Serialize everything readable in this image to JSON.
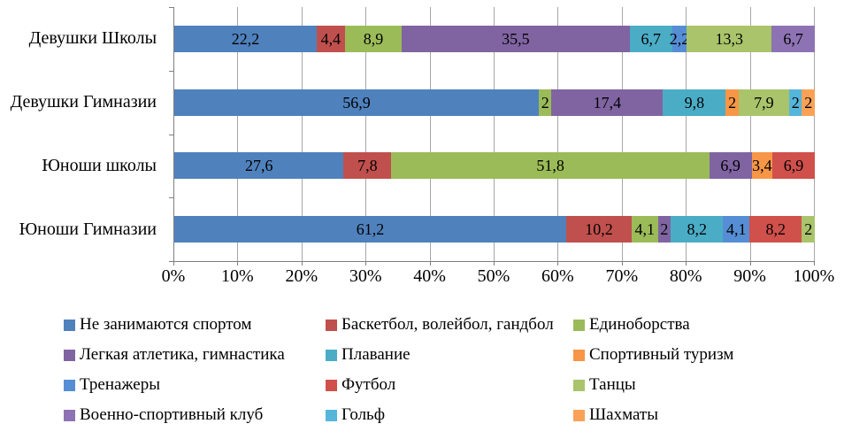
{
  "chart_data": {
    "type": "bar",
    "subtype": "horizontal-100-stacked",
    "title": "",
    "xlabel": "",
    "ylabel": "",
    "unit": "%",
    "decimal_separator": ",",
    "xlim": [
      0,
      100
    ],
    "grid": "vertical",
    "grid_color": "#a6a6a6",
    "axis_color": "#7f7f7f",
    "x_ticks": [
      "0%",
      "10%",
      "20%",
      "30%",
      "40%",
      "50%",
      "60%",
      "70%",
      "80%",
      "90%",
      "100%"
    ],
    "legend_position": "bottom",
    "series": [
      {
        "name": "Не занимаются спортом",
        "color": "#4F81BD"
      },
      {
        "name": "Баскетбол, волейбол, гандбол",
        "color": "#C0504D"
      },
      {
        "name": "Единоборства",
        "color": "#9BBB59"
      },
      {
        "name": "Легкая атлетика, гимнастика",
        "color": "#8064A2"
      },
      {
        "name": "Плавание",
        "color": "#4BACC6"
      },
      {
        "name": "Спортивный туризм",
        "color": "#F79646"
      },
      {
        "name": "Тренажеры",
        "color": "#558ED5"
      },
      {
        "name": "Футбол",
        "color": "#D0504B"
      },
      {
        "name": "Танцы",
        "color": "#A9C46A"
      },
      {
        "name": "Военно-спортивный клуб",
        "color": "#8E73B4"
      },
      {
        "name": "Гольф",
        "color": "#55B6DB"
      },
      {
        "name": "Шахматы",
        "color": "#F9A257"
      }
    ],
    "categories": [
      "Девушки Школы",
      "Девушки Гимназии",
      "Юноши школы",
      "Юноши Гимназии"
    ],
    "rows": [
      {
        "category": "Девушки Школы",
        "segments": [
          {
            "series": "Не занимаются спортом",
            "value": 22.2,
            "label": "22,2"
          },
          {
            "series": "Баскетбол, волейбол, гандбол",
            "value": 4.4,
            "label": "4,4"
          },
          {
            "series": "Единоборства",
            "value": 8.9,
            "label": "8,9"
          },
          {
            "series": "Легкая атлетика, гимнастика",
            "value": 35.5,
            "label": "35,5"
          },
          {
            "series": "Плавание",
            "value": 6.7,
            "label": "6,7"
          },
          {
            "series": "Тренажеры",
            "value": 2.2,
            "label": "2,2"
          },
          {
            "series": "Танцы",
            "value": 13.3,
            "label": "13,3"
          },
          {
            "series": "Военно-спортивный клуб",
            "value": 6.7,
            "label": "6,7"
          }
        ]
      },
      {
        "category": "Девушки Гимназии",
        "segments": [
          {
            "series": "Не занимаются спортом",
            "value": 56.9,
            "label": "56,9"
          },
          {
            "series": "Единоборства",
            "value": 2,
            "label": "2"
          },
          {
            "series": "Легкая атлетика, гимнастика",
            "value": 17.4,
            "label": "17,4"
          },
          {
            "series": "Плавание",
            "value": 9.8,
            "label": "9,8"
          },
          {
            "series": "Спортивный туризм",
            "value": 2,
            "label": "2"
          },
          {
            "series": "Танцы",
            "value": 7.9,
            "label": "7,9"
          },
          {
            "series": "Гольф",
            "value": 2,
            "label": "2"
          },
          {
            "series": "Шахматы",
            "value": 2,
            "label": "2"
          }
        ]
      },
      {
        "category": "Юноши школы",
        "segments": [
          {
            "series": "Не занимаются спортом",
            "value": 27.6,
            "label": "27,6"
          },
          {
            "series": "Баскетбол, волейбол, гандбол",
            "value": 7.8,
            "label": "7,8"
          },
          {
            "series": "Единоборства",
            "value": 51.8,
            "label": "51,8"
          },
          {
            "series": "Легкая атлетика, гимнастика",
            "value": 6.9,
            "label": "6,9"
          },
          {
            "series": "Спортивный туризм",
            "value": 3.4,
            "label": "3,4"
          },
          {
            "series": "Футбол",
            "value": 6.9,
            "label": "6,9"
          }
        ]
      },
      {
        "category": "Юноши Гимназии",
        "segments": [
          {
            "series": "Не занимаются спортом",
            "value": 61.2,
            "label": "61,2"
          },
          {
            "series": "Баскетбол, волейбол, гандбол",
            "value": 10.2,
            "label": "10,2"
          },
          {
            "series": "Единоборства",
            "value": 4.1,
            "label": "4,1"
          },
          {
            "series": "Легкая атлетика, гимнастика",
            "value": 2,
            "label": "2"
          },
          {
            "series": "Плавание",
            "value": 8.2,
            "label": "8,2"
          },
          {
            "series": "Тренажеры",
            "value": 4.1,
            "label": "4,1"
          },
          {
            "series": "Футбол",
            "value": 8.2,
            "label": "8,2"
          },
          {
            "series": "Танцы",
            "value": 2,
            "label": "2"
          }
        ]
      }
    ]
  }
}
